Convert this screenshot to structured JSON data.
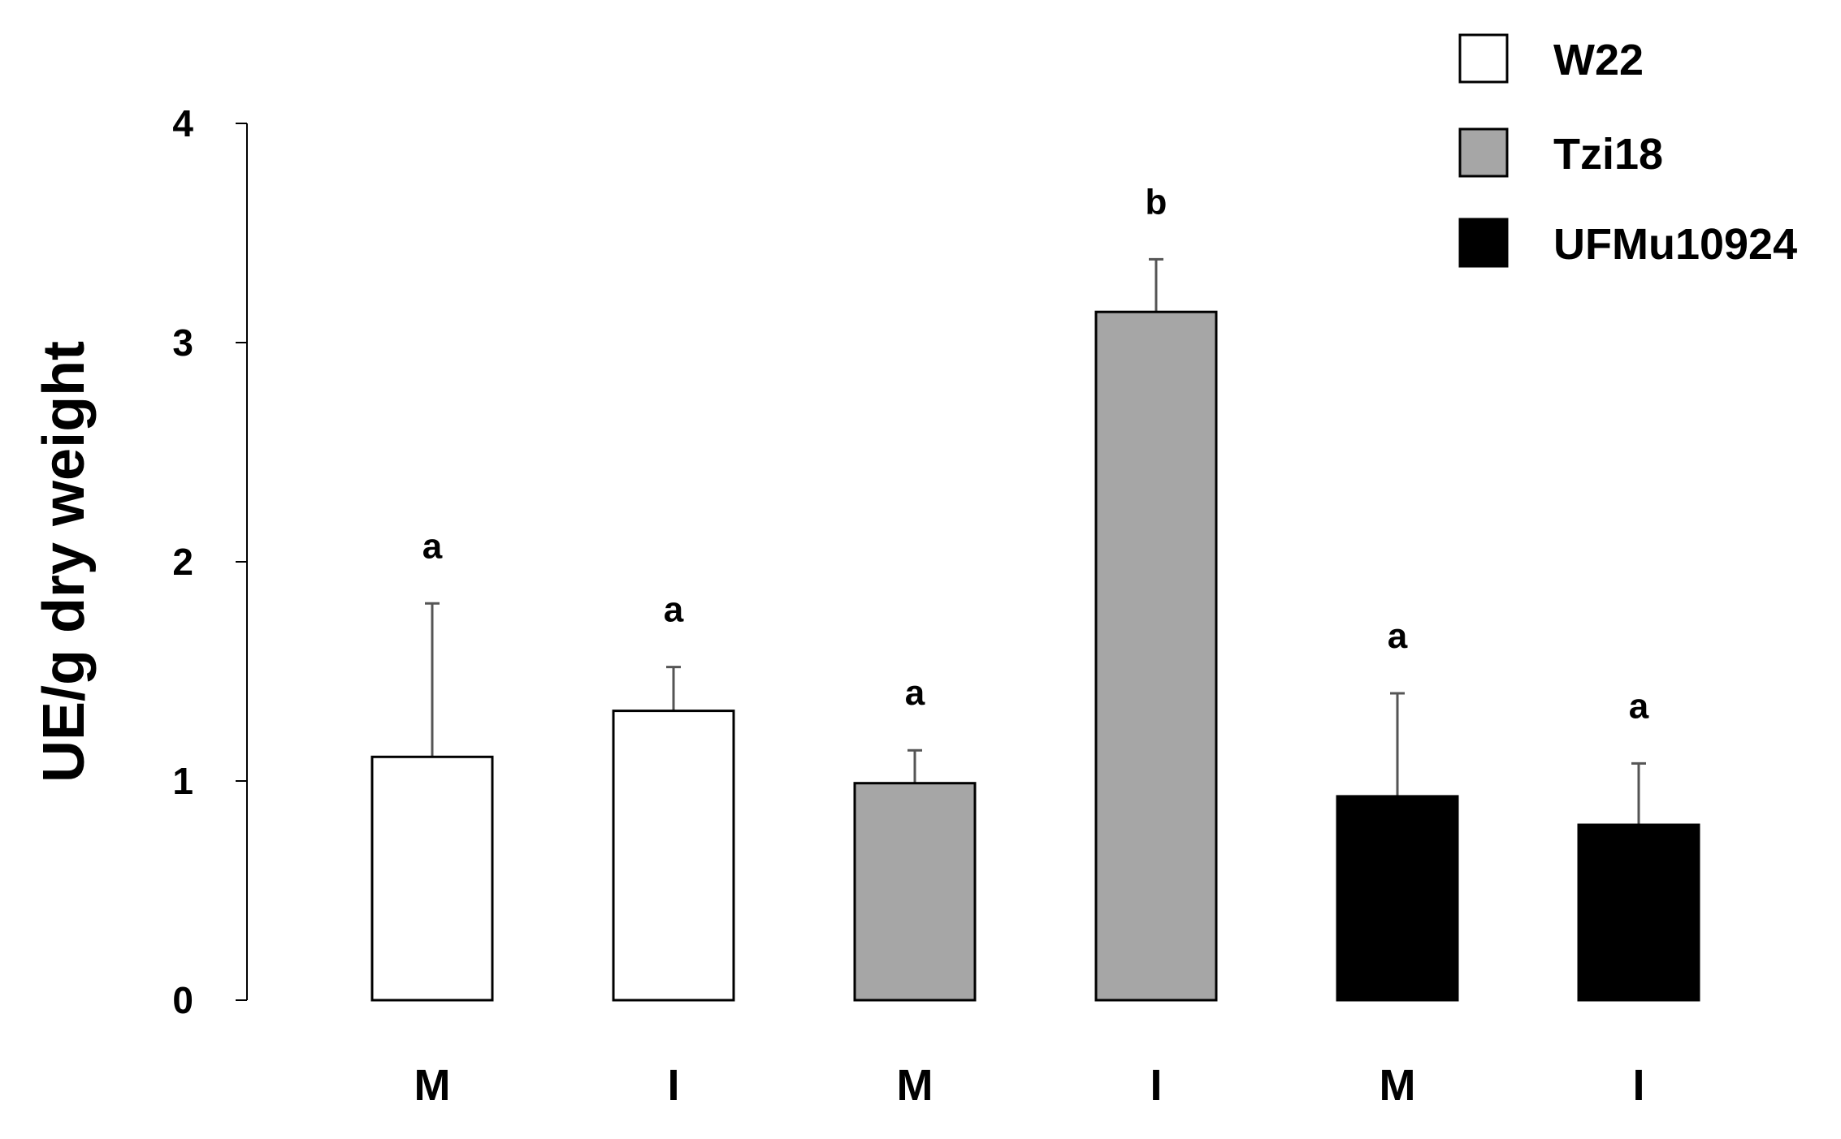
{
  "chart_data": {
    "type": "bar",
    "ylabel": "UE/g dry weight",
    "xlabel": "",
    "ylim": [
      0,
      4
    ],
    "yticks": [
      "0",
      "1",
      "2",
      "3",
      "4"
    ],
    "grid": false,
    "legend_position": "top-right",
    "categories": [
      "M",
      "I",
      "M",
      "I",
      "M",
      "I"
    ],
    "series": [
      {
        "name": "W22",
        "color": "#ffffff",
        "values": [
          1.11,
          1.32,
          null,
          null,
          null,
          null
        ],
        "errors": [
          0.7,
          0.2,
          null,
          null,
          null,
          null
        ]
      },
      {
        "name": "Tzi18",
        "color": "#a6a6a6",
        "values": [
          null,
          null,
          0.99,
          3.14,
          null,
          null
        ],
        "errors": [
          null,
          null,
          0.15,
          0.24,
          null,
          null
        ]
      },
      {
        "name": "UFMu10924",
        "color": "#000000",
        "values": [
          null,
          null,
          null,
          null,
          0.93,
          0.8
        ],
        "errors": [
          null,
          null,
          null,
          null,
          0.47,
          0.28
        ]
      }
    ],
    "significance": [
      "a",
      "a",
      "a",
      "b",
      "a",
      "a"
    ]
  }
}
